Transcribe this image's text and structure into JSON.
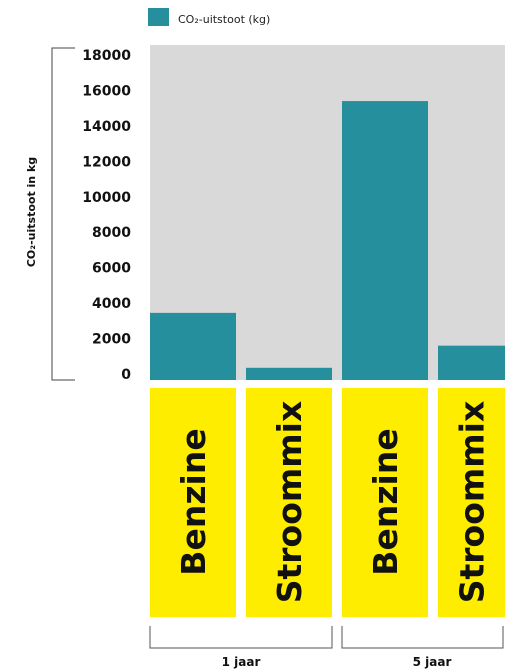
{
  "chart_data": {
    "type": "bar",
    "title": "",
    "ylabel": "CO₂-uitstoot in kg",
    "ylim": [
      0,
      18000
    ],
    "yticks": [
      0,
      2000,
      4000,
      6000,
      8000,
      10000,
      12000,
      14000,
      16000,
      18000
    ],
    "legend": {
      "label": "CO₂-uitstoot (kg)",
      "position": "top-left",
      "color": "#268f9d"
    },
    "grid": false,
    "colors": {
      "bar": "#268f9d",
      "plot_background": "#d9d9d9",
      "label_box": "#ffed00"
    },
    "categories": [
      "Benzine",
      "Stroommix",
      "Benzine",
      "Stroommix"
    ],
    "groups": [
      {
        "label": "1 jaar",
        "categories": [
          0,
          1
        ]
      },
      {
        "label": "5 jaar",
        "categories": [
          2,
          3
        ]
      }
    ],
    "series": [
      {
        "name": "CO₂-uitstoot (kg)",
        "values": [
          3450,
          350,
          15400,
          1600
        ]
      }
    ]
  }
}
